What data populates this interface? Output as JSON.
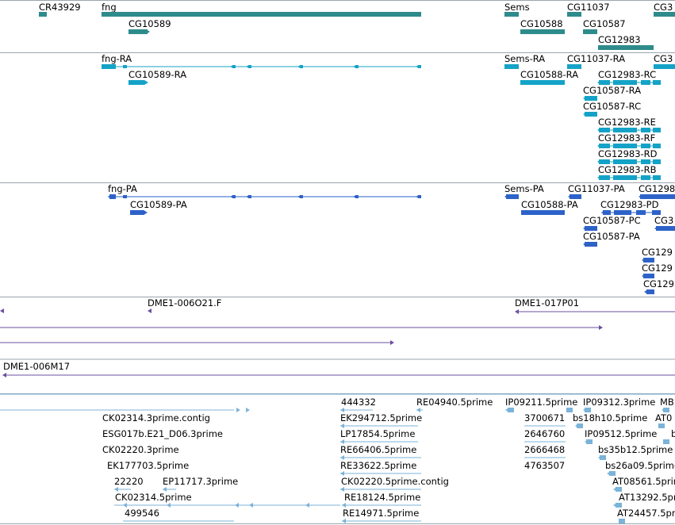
{
  "colors": {
    "gene": "#2E8B8B",
    "transcript": "#14A3C7",
    "protein": "#2D62C8",
    "clone": "#6B4FA0",
    "est": "#7BB3D9",
    "separator": "#9AA4AE"
  },
  "tracks": {
    "genes": [
      {
        "label": "CR43929"
      },
      {
        "label": "fng"
      },
      {
        "label": "CG10589"
      },
      {
        "label": "Sems"
      },
      {
        "label": "CG10588"
      },
      {
        "label": "CG11037"
      },
      {
        "label": "CG10587"
      },
      {
        "label": "CG3"
      },
      {
        "label": "CG12983"
      }
    ],
    "transcripts": [
      {
        "label": "fng-RA"
      },
      {
        "label": "CG10589-RA"
      },
      {
        "label": "Sems-RA"
      },
      {
        "label": "CG10588-RA"
      },
      {
        "label": "CG11037-RA"
      },
      {
        "label": "CG3"
      },
      {
        "label": "CG12983-RC"
      },
      {
        "label": "CG10587-RA"
      },
      {
        "label": "CG10587-RC"
      },
      {
        "label": "CG12983-RE"
      },
      {
        "label": "CG12983-RF"
      },
      {
        "label": "CG12983-RD"
      },
      {
        "label": "CG12983-RB"
      }
    ],
    "proteins": [
      {
        "label": "fng-PA"
      },
      {
        "label": "CG10589-PA"
      },
      {
        "label": "Sems-PA"
      },
      {
        "label": "CG10588-PA"
      },
      {
        "label": "CG11037-PA"
      },
      {
        "label": "CG1298"
      },
      {
        "label": "CG12983-PD"
      },
      {
        "label": "CG10587-PC"
      },
      {
        "label": "CG3"
      },
      {
        "label": "CG10587-PA"
      },
      {
        "label": "CG129"
      },
      {
        "label": "CG129"
      },
      {
        "label": "CG129"
      }
    ],
    "clones": [
      {
        "label": "DME1-006O21.F"
      },
      {
        "label": "DME1-017P01"
      },
      {
        "label": "DME1-006M17"
      }
    ],
    "ests": [
      {
        "label": "444332"
      },
      {
        "label": "RE04940.5prime"
      },
      {
        "label": "IP09211.5prime"
      },
      {
        "label": "IP09312.3prime"
      },
      {
        "label": "MB"
      },
      {
        "label": "CK02314.3prime.contig"
      },
      {
        "label": "EK294712.5prime"
      },
      {
        "label": "3700671"
      },
      {
        "label": "bs18h10.5prime"
      },
      {
        "label": "AT0"
      },
      {
        "label": "ESG017b.E21_D06.3prime"
      },
      {
        "label": "LP17854.5prime"
      },
      {
        "label": "2646760"
      },
      {
        "label": "IP09512.5prime"
      },
      {
        "label": "b"
      },
      {
        "label": "CK02220.3prime"
      },
      {
        "label": "RE66406.5prime"
      },
      {
        "label": "2666468"
      },
      {
        "label": "bs35b12.5prime"
      },
      {
        "label": "EK177703.5prime"
      },
      {
        "label": "RE33622.5prime"
      },
      {
        "label": "4763507"
      },
      {
        "label": "bs26a09.5prime"
      },
      {
        "label": "22220"
      },
      {
        "label": "EP11717.3prime"
      },
      {
        "label": "CK02220.5prime.contig"
      },
      {
        "label": "AT08561.5prime"
      },
      {
        "label": "CK02314.5prime"
      },
      {
        "label": "RE18124.5prime"
      },
      {
        "label": "AT13292.5prime"
      },
      {
        "label": "499546"
      },
      {
        "label": "RE14971.5prime"
      },
      {
        "label": "AT24457.5prime"
      }
    ]
  }
}
